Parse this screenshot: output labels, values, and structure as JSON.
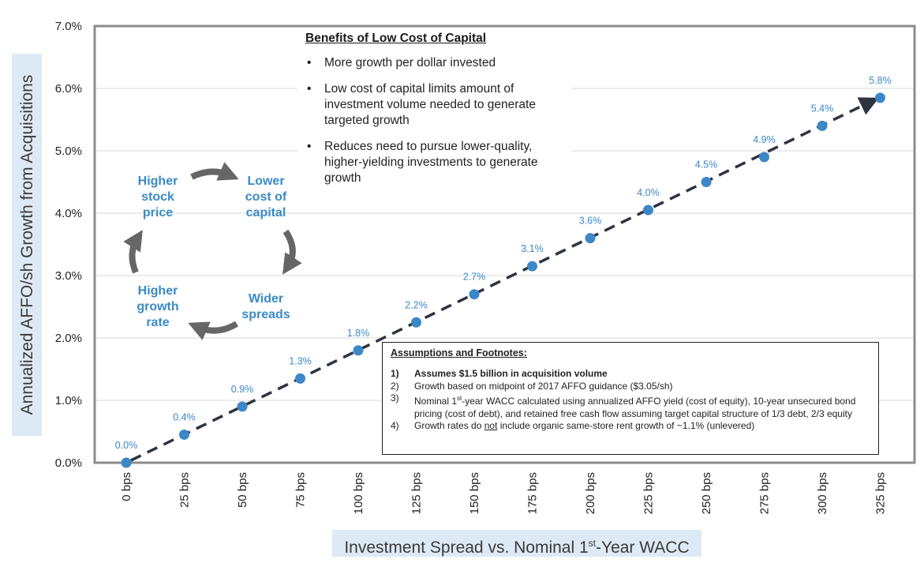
{
  "chart_data": {
    "type": "scatter",
    "x_categories": [
      "0 bps",
      "25 bps",
      "50 bps",
      "75 bps",
      "100 bps",
      "125 bps",
      "150 bps",
      "175 bps",
      "200 bps",
      "225 bps",
      "250 bps",
      "275 bps",
      "300 bps",
      "325 bps"
    ],
    "values": [
      0.0,
      0.45,
      0.9,
      1.35,
      1.8,
      2.25,
      2.7,
      3.15,
      3.6,
      4.05,
      4.5,
      4.9,
      5.4,
      5.85
    ],
    "data_labels": [
      "0.0%",
      "0.4%",
      "0.9%",
      "1.3%",
      "1.8%",
      "2.2%",
      "2.7%",
      "3.1%",
      "3.6%",
      "4.0%",
      "4.5%",
      "4.9%",
      "5.4%",
      "5.8%"
    ],
    "y_ticks": [
      "0.0%",
      "1.0%",
      "2.0%",
      "3.0%",
      "4.0%",
      "5.0%",
      "6.0%",
      "7.0%"
    ],
    "ylim": [
      0,
      7
    ],
    "ylabel": "Annualized AFFO/sh Growth from Acquisitions",
    "xlabel": "Investment Spread vs. Nominal 1st-Year WACC",
    "trend": "dashed arrow from first to last point",
    "grid": "horizontal",
    "colors": {
      "point": "#3c87c8",
      "label": "#3c87c8",
      "trend": "#2e3440",
      "grid": "#d9d9d9",
      "axis_label_bg": "#dde9f4"
    }
  },
  "xlabel_parts": {
    "before": "Investment Spread vs. Nominal 1",
    "sup": "st",
    "after": "-Year WACC"
  },
  "benefits": {
    "title": "Benefits of Low Cost of Capital",
    "items": [
      "More growth per dollar invested",
      "Low cost of capital limits amount of investment volume needed to generate targeted growth",
      "Reduces need to pursue lower-quality, higher-yielding investments to generate growth"
    ]
  },
  "cycle": {
    "top_left": "Higher\nstock\nprice",
    "top_right": "Lower\ncost of\ncapital",
    "bottom_right": "Wider\nspreads",
    "bottom_left": "Higher\ngrowth\nrate"
  },
  "footnotes": {
    "title": "Assumptions and Footnotes:",
    "items": [
      {
        "num": "1)",
        "text": "Assumes $1.5 billion in acquisition volume"
      },
      {
        "num": "2)",
        "text": "Growth based on midpoint of 2017 AFFO guidance ($3.05/sh)"
      },
      {
        "num": "3)",
        "text_a": "Nominal 1",
        "sup": "st",
        "text_b": "-year WACC calculated using annualized AFFO yield (cost of equity), 10-year unsecured bond pricing (cost of debt), and retained free cash flow assuming target capital structure of 1/3 debt, 2/3 equity"
      },
      {
        "num": "4)",
        "text_a": "Growth rates do ",
        "underlined": "not",
        "text_b": " include organic same-store rent growth of ~1.1% (unlevered)"
      }
    ]
  }
}
